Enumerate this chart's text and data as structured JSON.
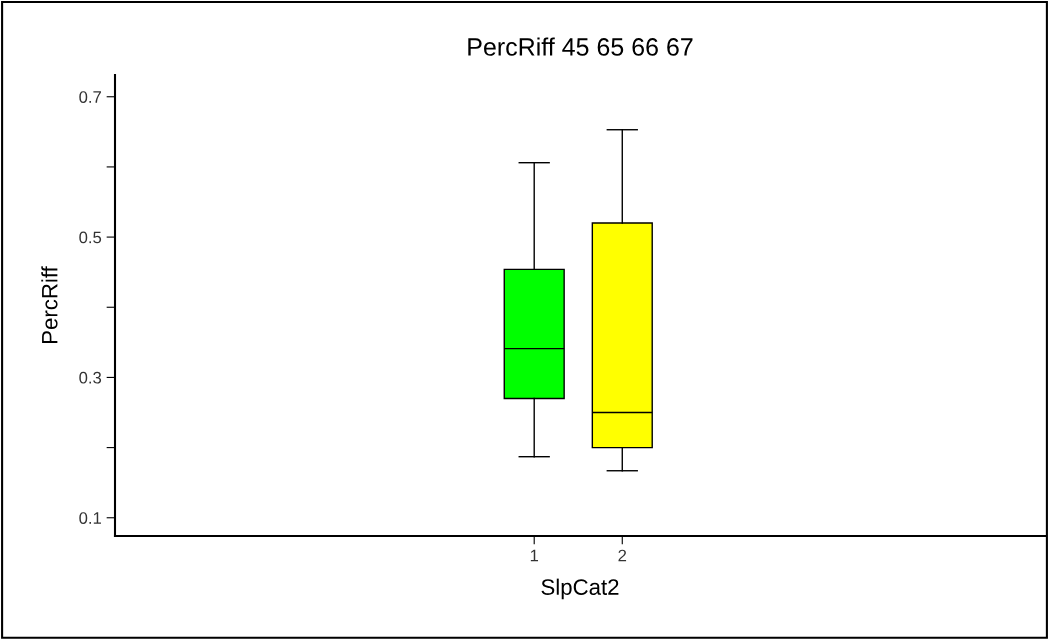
{
  "chart_data": {
    "type": "box",
    "title": "PercRiff 45 65 66 67",
    "xlabel": "SlpCat2",
    "ylabel": "PercRiff",
    "categories": [
      "1",
      "2"
    ],
    "series": [
      {
        "colors": [
          "#00ff00",
          "#ffff00"
        ],
        "boxes": [
          {
            "low": 0.187,
            "q1": 0.27,
            "median": 0.341,
            "q3": 0.454,
            "high": 0.606
          },
          {
            "low": 0.167,
            "q1": 0.2,
            "median": 0.25,
            "q3": 0.52,
            "high": 0.653
          }
        ]
      }
    ],
    "ylim": [
      0.074,
      0.731
    ],
    "yticks": [
      0.1,
      {
        "value": 0.2,
        "label": null
      },
      0.3,
      {
        "value": 0.4,
        "label": null
      },
      0.5,
      {
        "value": 0.6,
        "label": null
      },
      0.7
    ],
    "grid": false,
    "legend": false
  }
}
